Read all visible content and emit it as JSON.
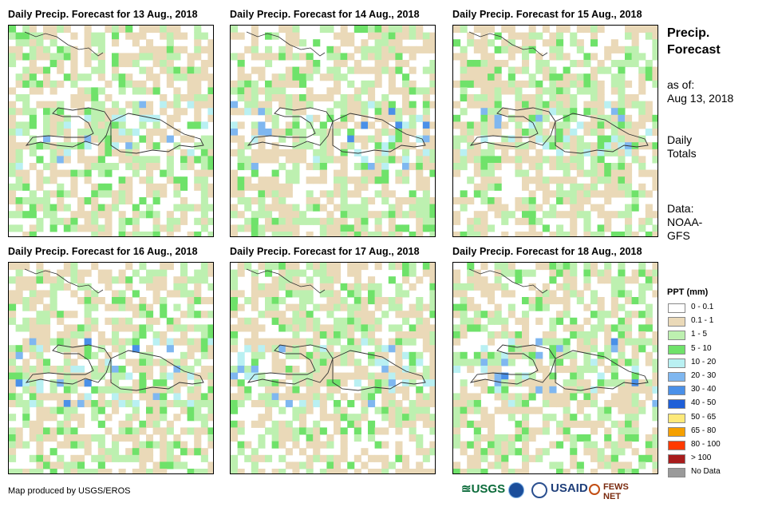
{
  "panels": [
    {
      "title": "Daily Precip. Forecast for 13 Aug., 2018"
    },
    {
      "title": "Daily Precip. Forecast for 14 Aug., 2018"
    },
    {
      "title": "Daily Precip. Forecast for 15 Aug., 2018"
    },
    {
      "title": "Daily Precip. Forecast for 16 Aug., 2018"
    },
    {
      "title": "Daily Precip. Forecast for 17 Aug., 2018"
    },
    {
      "title": "Daily Precip. Forecast for 18 Aug., 2018"
    }
  ],
  "sidebar": {
    "title_line1": "Precip.",
    "title_line2": "Forecast",
    "asof_label": "as of:",
    "asof_date": "Aug 13, 2018",
    "totals_line1": "Daily",
    "totals_line2": "Totals",
    "data_line1": "Data:",
    "data_line2": "NOAA-",
    "data_line3": "GFS"
  },
  "legend": {
    "title": "PPT (mm)",
    "items": [
      {
        "label": "0 - 0.1",
        "color": "#ffffff"
      },
      {
        "label": "0.1 - 1",
        "color": "#ead9b8"
      },
      {
        "label": "1 - 5",
        "color": "#bdf0b0"
      },
      {
        "label": "5 - 10",
        "color": "#6fe26a"
      },
      {
        "label": "10 - 20",
        "color": "#b9f0f2"
      },
      {
        "label": "20 - 30",
        "color": "#7fb7f0"
      },
      {
        "label": "30 - 40",
        "color": "#4a90e8"
      },
      {
        "label": "40 - 50",
        "color": "#1f5fd8"
      },
      {
        "label": "50 - 65",
        "color": "#fde97a"
      },
      {
        "label": "65 - 80",
        "color": "#f5a000"
      },
      {
        "label": "80 - 100",
        "color": "#ff3a00"
      },
      {
        "label": "> 100",
        "color": "#a81c1c"
      },
      {
        "label": "No Data",
        "color": "#9a9a9a"
      }
    ]
  },
  "footer": {
    "credit": "Map produced by USGS/EROS",
    "logo_usgs": "≊USGS",
    "logo_usaid": "USAID",
    "logo_fews": "FEWS NET"
  }
}
